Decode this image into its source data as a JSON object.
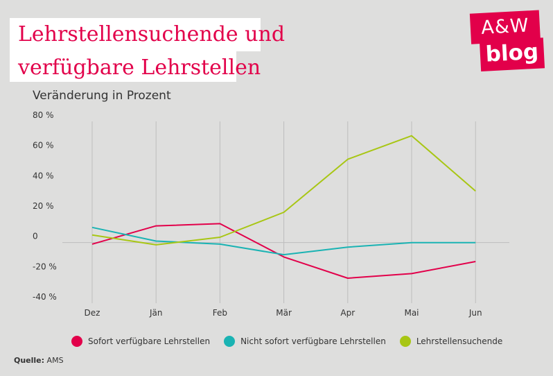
{
  "title": {
    "line1": "Lehrstellensuchende und",
    "line2": "verfügbare Lehrstellen"
  },
  "logo": {
    "top": "A&W",
    "bottom": "blog"
  },
  "source": {
    "label": "Quelle:",
    "value": "AMS"
  },
  "colors": {
    "background": "#dededd",
    "accent": "#e2004a",
    "teal": "#1ab3b3",
    "lime": "#a8c614",
    "grid": "#bdbdbd"
  },
  "chart_data": {
    "type": "line",
    "title": "",
    "subtitle": "Veränderung in Prozent",
    "xlabel": "",
    "ylabel": "",
    "categories": [
      "Dez",
      "Jän",
      "Feb",
      "Mär",
      "Apr",
      "Mai",
      "Jun"
    ],
    "ylim": [
      -40,
      80
    ],
    "yticks": [
      80,
      60,
      40,
      20,
      0,
      -20,
      -40
    ],
    "ytick_labels": [
      "80 %",
      "60 %",
      "40 %",
      "20 %",
      "0",
      "-20 %",
      "-40 %"
    ],
    "grid": "vertical",
    "legend_position": "bottom",
    "series": [
      {
        "name": "Sofort verfügbare Lehrstellen",
        "color": "#e2004a",
        "values": [
          -1,
          11,
          12.5,
          -9.5,
          -23.5,
          -20.5,
          -12.5
        ]
      },
      {
        "name": "Nicht sofort verfügbare Lehrstellen",
        "color": "#1ab3b3",
        "values": [
          10,
          1,
          -1,
          -8,
          -3,
          0,
          0
        ]
      },
      {
        "name": "Lehrstellensuchende",
        "color": "#a8c614",
        "values": [
          5,
          -1.5,
          3.5,
          20,
          55,
          70.5,
          34
        ]
      }
    ]
  }
}
